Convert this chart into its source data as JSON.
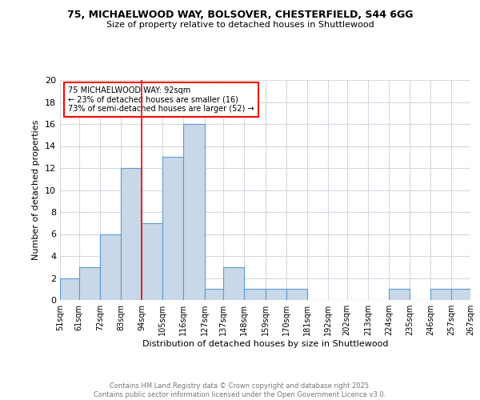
{
  "title1": "75, MICHAELWOOD WAY, BOLSOVER, CHESTERFIELD, S44 6GG",
  "title2": "Size of property relative to detached houses in Shuttlewood",
  "xlabel": "Distribution of detached houses by size in Shuttlewood",
  "ylabel": "Number of detached properties",
  "bins": [
    51,
    61,
    72,
    83,
    94,
    105,
    116,
    127,
    137,
    148,
    159,
    170,
    181,
    192,
    202,
    213,
    224,
    235,
    246,
    257,
    267
  ],
  "counts": [
    2,
    3,
    6,
    12,
    7,
    13,
    16,
    1,
    3,
    1,
    1,
    1,
    0,
    0,
    0,
    0,
    1,
    0,
    1,
    1
  ],
  "bar_color": "#c8d8e8",
  "bar_edgecolor": "#5b9bd5",
  "grid_color": "#d0d8e0",
  "red_line_x": 94,
  "annotation_text": "75 MICHAELWOOD WAY: 92sqm\n← 23% of detached houses are smaller (16)\n73% of semi-detached houses are larger (52) →",
  "annotation_box_color": "white",
  "annotation_box_edgecolor": "red",
  "footer_text": "Contains HM Land Registry data © Crown copyright and database right 2025.\nContains public sector information licensed under the Open Government Licence v3.0.",
  "tick_labels": [
    "51sqm",
    "61sqm",
    "72sqm",
    "83sqm",
    "94sqm",
    "105sqm",
    "116sqm",
    "127sqm",
    "137sqm",
    "148sqm",
    "159sqm",
    "170sqm",
    "181sqm",
    "192sqm",
    "202sqm",
    "213sqm",
    "224sqm",
    "235sqm",
    "246sqm",
    "257sqm",
    "267sqm"
  ],
  "ylim": [
    0,
    20
  ],
  "yticks": [
    0,
    2,
    4,
    6,
    8,
    10,
    12,
    14,
    16,
    18,
    20
  ]
}
